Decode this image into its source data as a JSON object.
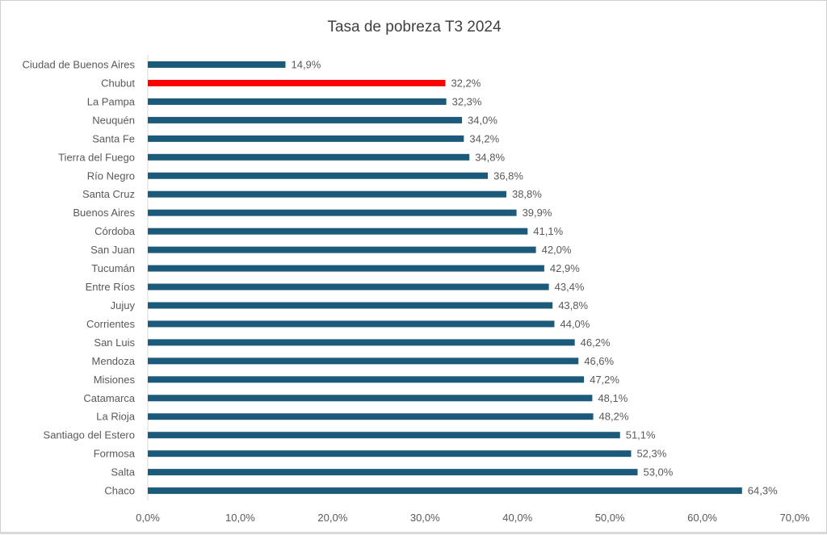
{
  "chart_data": {
    "type": "bar",
    "orientation": "horizontal",
    "title": "Tasa de pobreza T3 2024",
    "xlabel": "",
    "ylabel": "",
    "xlim": [
      0,
      70
    ],
    "ticks": [
      "0,0%",
      "10,0%",
      "20,0%",
      "30,0%",
      "40,0%",
      "50,0%",
      "60,0%",
      "70,0%"
    ],
    "grid": false,
    "colors": {
      "default": "#1B5A7A",
      "highlight": "#FF0000"
    },
    "highlight": "Chubut",
    "categories": [
      "Ciudad de Buenos Aires",
      "Chubut",
      "La Pampa",
      "Neuquén",
      "Santa Fe",
      "Tierra del Fuego",
      "Río Negro",
      "Santa Cruz",
      "Buenos Aires",
      "Córdoba",
      "San Juan",
      "Tucumán",
      "Entre Ríos",
      "Jujuy",
      "Corrientes",
      "San Luis",
      "Mendoza",
      "Misiones",
      "Catamarca",
      "La Rioja",
      "Santiago del Estero",
      "Formosa",
      "Salta",
      "Chaco"
    ],
    "values": [
      14.9,
      32.2,
      32.3,
      34.0,
      34.2,
      34.8,
      36.8,
      38.8,
      39.9,
      41.1,
      42.0,
      42.9,
      43.4,
      43.8,
      44.0,
      46.2,
      46.6,
      47.2,
      48.1,
      48.2,
      51.1,
      52.3,
      53.0,
      64.3
    ],
    "labels": [
      "14,9%",
      "32,2%",
      "32,3%",
      "34,0%",
      "34,2%",
      "34,8%",
      "36,8%",
      "38,8%",
      "39,9%",
      "41,1%",
      "42,0%",
      "42,9%",
      "43,4%",
      "43,8%",
      "44,0%",
      "46,2%",
      "46,6%",
      "47,2%",
      "48,1%",
      "48,2%",
      "51,1%",
      "52,3%",
      "53,0%",
      "64,3%"
    ]
  }
}
